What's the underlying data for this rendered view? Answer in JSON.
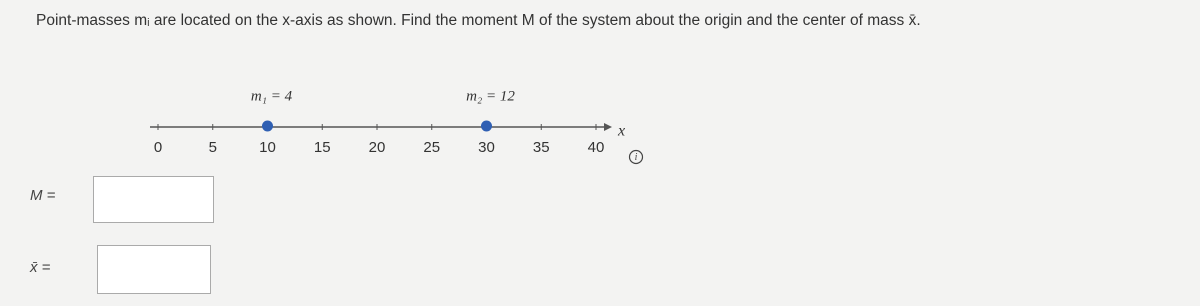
{
  "question": "Point-masses mᵢ are located on the x-axis as shown. Find the moment M of the system about the origin and the center of mass x̄.",
  "number_line": {
    "ticks": [
      0,
      5,
      10,
      15,
      20,
      25,
      30,
      35,
      40
    ],
    "axis_label": "x",
    "masses": [
      {
        "label": "m₁ = 4",
        "position": 10
      },
      {
        "label": "m₂ = 12",
        "position": 30
      }
    ]
  },
  "inputs": [
    {
      "label": "M ="
    },
    {
      "label": "x̄ ="
    }
  ]
}
